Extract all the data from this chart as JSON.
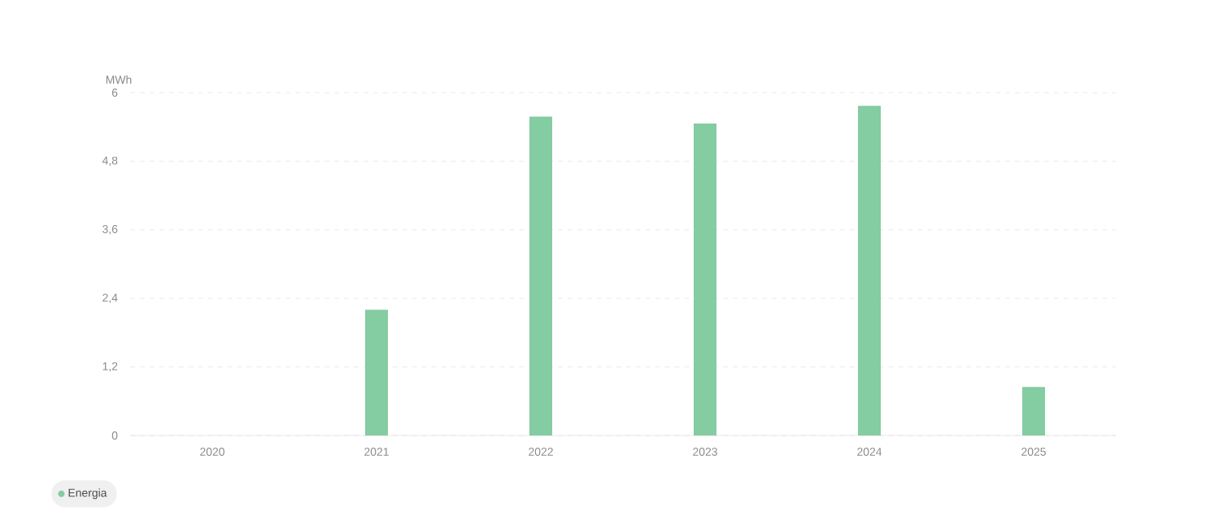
{
  "chart_data": {
    "type": "bar",
    "ylabel": "MWh",
    "categories": [
      "2020",
      "2021",
      "2022",
      "2023",
      "2024",
      "2025"
    ],
    "series": [
      {
        "name": "Energia",
        "color": "#84cca1",
        "values": [
          0,
          2.2,
          5.58,
          5.46,
          5.77,
          0.85
        ]
      }
    ],
    "ylim": [
      0,
      6
    ],
    "yticks": [
      0,
      {
        "value": 1.2,
        "label": "1,2"
      },
      {
        "value": 2.4,
        "label": "2,4"
      },
      {
        "value": 3.6,
        "label": "3,6"
      },
      {
        "value": 4.8,
        "label": "4,8"
      },
      6
    ],
    "grid": "y",
    "legend": "bottom left"
  }
}
